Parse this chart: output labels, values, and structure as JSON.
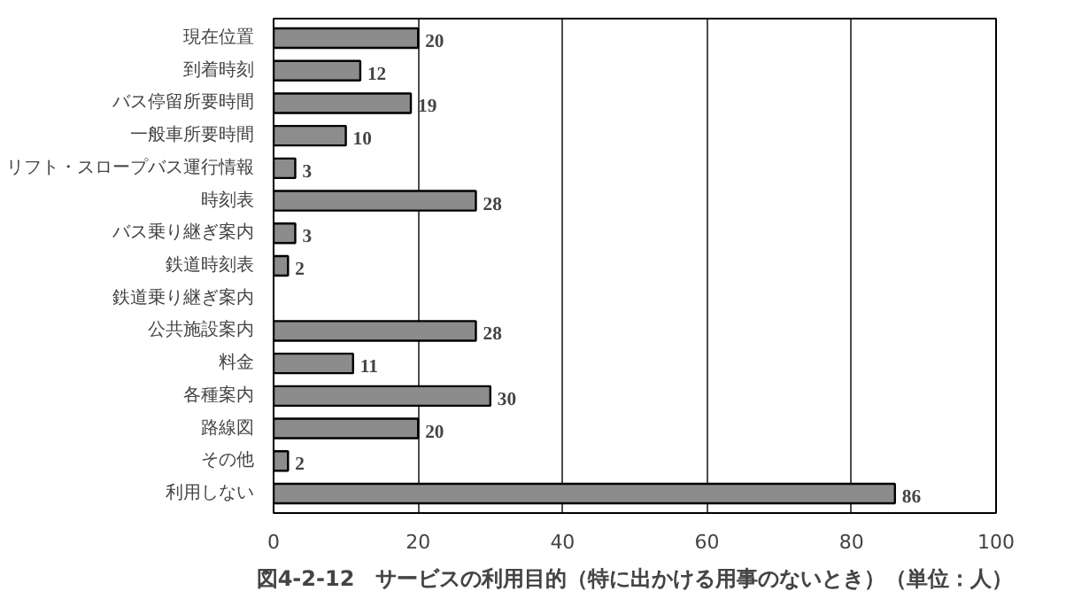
{
  "chart_data": {
    "type": "bar",
    "orientation": "horizontal",
    "title": "図4-2-12　サービスの利用目的（特に出かける用事のないとき）（単位：人）",
    "categories": [
      "現在位置",
      "到着時刻",
      "バス停留所要時間",
      "一般車所要時間",
      "リフト・スロープバス運行情報",
      "時刻表",
      "バス乗り継ぎ案内",
      "鉄道時刻表",
      "鉄道乗り継ぎ案内",
      "公共施設案内",
      "料金",
      "各種案内",
      "路線図",
      "その他",
      "利用しない"
    ],
    "values": [
      20,
      12,
      19,
      10,
      3,
      28,
      3,
      2,
      0,
      28,
      11,
      30,
      20,
      2,
      86
    ],
    "value_labels": [
      "20",
      "12",
      "19",
      "10",
      "3",
      "28",
      "3",
      "2",
      null,
      "28",
      "11",
      "30",
      "20",
      "2",
      "86"
    ],
    "color": "#8c8c8c",
    "xlim": [
      0,
      100
    ],
    "xticks": [
      0,
      20,
      40,
      60,
      80,
      100
    ],
    "grid": "x"
  }
}
